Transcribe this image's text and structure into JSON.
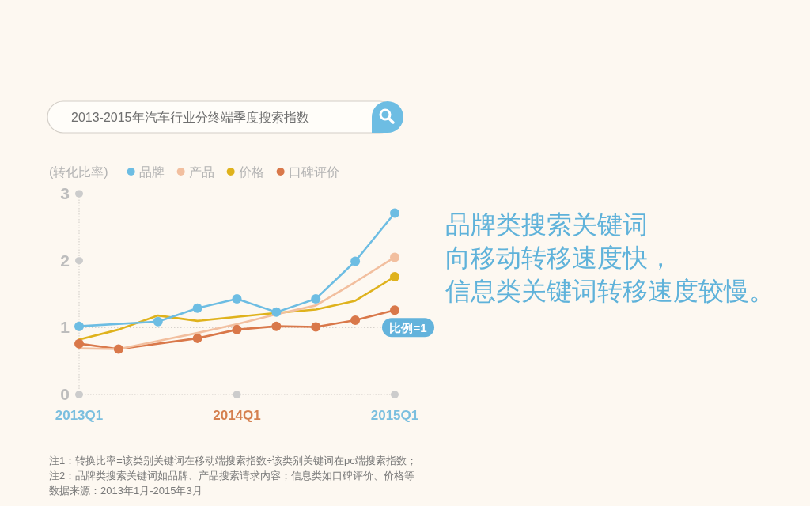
{
  "chart_data": {
    "type": "line",
    "title": "2013-2015年汽车行业分终端季度搜索指数",
    "ylabel": "(转化比率)",
    "annotations": [
      "品牌类搜索关键词",
      "向移动转移速度快，",
      "信息类关键词转移速度较慢。",
      "注1：转换比率=该类别关键词在移动端搜索指数÷该类别关键词在pc端搜索指数；",
      "注2：品牌类搜索关键词如品牌、产品搜索请求内容；信息类如口碑评价、价格等",
      "数据来源：2013年1月-2015年3月"
    ],
    "x": [
      "2013-01",
      "2013-04",
      "2013-07",
      "2013-10",
      "2014-01",
      "2014-04",
      "2014-07",
      "2014-10",
      "2015-01"
    ],
    "xlim": [
      "2013-01",
      "2015-01"
    ],
    "xticks": [
      {
        "value": "2013-01",
        "label": "2013Q1"
      },
      {
        "value": "2014-01",
        "label": "2014Q1"
      },
      {
        "value": "2015-01",
        "label": "2015Q1"
      }
    ],
    "ylim": [
      0,
      3
    ],
    "yticks": [
      0,
      1,
      2,
      3
    ],
    "series": [
      {
        "name": "品牌",
        "color": "#6dbde3",
        "marker": "circle",
        "x": [
          "2013-01",
          "2013-07",
          "2013-10",
          "2014-01",
          "2014-04",
          "2014-07",
          "2014-10",
          "2015-01"
        ],
        "values": [
          1.02,
          1.09,
          1.29,
          1.43,
          1.23,
          1.43,
          1.99,
          2.71
        ]
      },
      {
        "name": "产品",
        "color": "#f2bf9f",
        "marker": "none",
        "values": [
          0.69,
          0.68,
          0.8,
          0.92,
          1.05,
          1.2,
          1.33,
          1.68,
          2.05
        ]
      },
      {
        "name": "价格",
        "color": "#dfb21c",
        "marker": "none",
        "values": [
          0.82,
          0.97,
          1.18,
          1.1,
          1.16,
          1.22,
          1.27,
          1.4,
          1.76
        ]
      },
      {
        "name": "口碑评价",
        "color": "#d9784a",
        "marker": "circle",
        "x": [
          "2013-01",
          "2013-04",
          "2013-10",
          "2014-01",
          "2014-04",
          "2014-07",
          "2014-10",
          "2015-01"
        ],
        "values": [
          0.76,
          0.68,
          0.84,
          0.97,
          1.02,
          1.01,
          1.11,
          1.26
        ]
      },
      {
        "type": "scatter",
        "color": "#f2bf9f",
        "marker": "circle",
        "x": [
          "2015-01"
        ],
        "values": [
          2.05
        ]
      },
      {
        "type": "scatter",
        "color": "#dfb21c",
        "marker": "circle",
        "x": [
          "2015-01"
        ],
        "values": [
          1.76
        ]
      }
    ],
    "ref_lines": [
      {
        "axis": "y",
        "value": 1,
        "label": "比例=1",
        "color": "#cfcbc5",
        "line_style": "dotted"
      }
    ],
    "legend": "top left"
  }
}
